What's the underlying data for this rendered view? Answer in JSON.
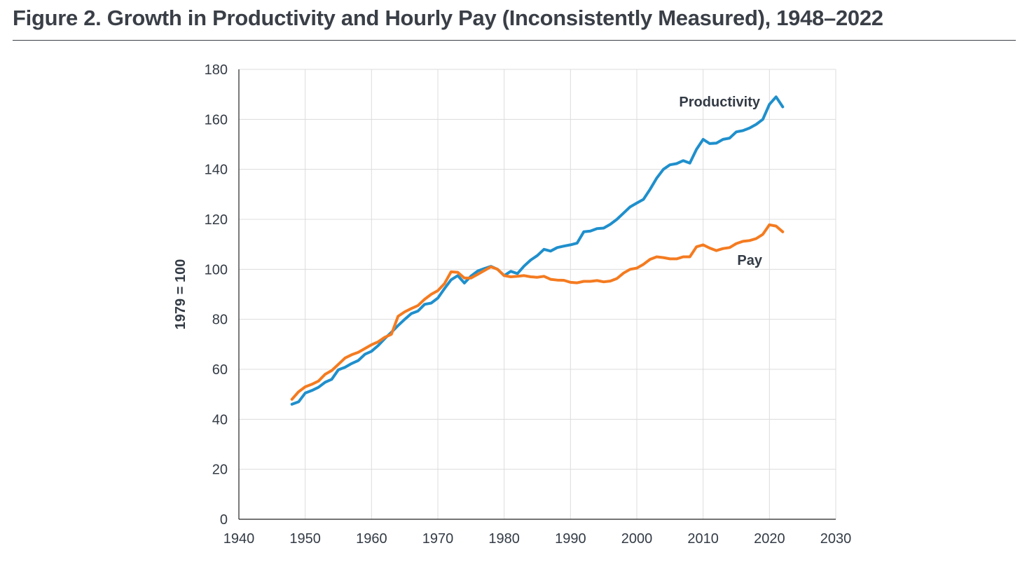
{
  "figure": {
    "title": "Figure 2. Growth in Productivity and Hourly Pay (Inconsistently Measured), 1948–2022"
  },
  "chart_data": {
    "type": "line",
    "title": "Figure 2. Growth in Productivity and Hourly Pay (Inconsistently Measured), 1948–2022",
    "xlabel": "",
    "ylabel": "1979 = 100",
    "xlim": [
      1940,
      2030
    ],
    "ylim": [
      0,
      180
    ],
    "xticks": [
      1940,
      1950,
      1960,
      1970,
      1980,
      1990,
      2000,
      2010,
      2020,
      2030
    ],
    "yticks": [
      0,
      20,
      40,
      60,
      80,
      100,
      120,
      140,
      160,
      180
    ],
    "grid": true,
    "legend": "direct labels on lines",
    "x": [
      1948,
      1949,
      1950,
      1951,
      1952,
      1953,
      1954,
      1955,
      1956,
      1957,
      1958,
      1959,
      1960,
      1961,
      1962,
      1963,
      1964,
      1965,
      1966,
      1967,
      1968,
      1969,
      1970,
      1971,
      1972,
      1973,
      1974,
      1975,
      1976,
      1977,
      1978,
      1979,
      1980,
      1981,
      1982,
      1983,
      1984,
      1985,
      1986,
      1987,
      1988,
      1989,
      1990,
      1991,
      1992,
      1993,
      1994,
      1995,
      1996,
      1997,
      1998,
      1999,
      2000,
      2001,
      2002,
      2003,
      2004,
      2005,
      2006,
      2007,
      2008,
      2009,
      2010,
      2011,
      2012,
      2013,
      2014,
      2015,
      2016,
      2017,
      2018,
      2019,
      2020,
      2021,
      2022
    ],
    "series": [
      {
        "name": "Productivity",
        "color": "#1f8fcc",
        "label_color": "#333b45",
        "values": [
          46.0,
          47.0,
          50.5,
          51.5,
          52.8,
          54.8,
          56.0,
          59.8,
          60.8,
          62.3,
          63.5,
          66.0,
          67.2,
          69.5,
          72.3,
          74.8,
          77.5,
          80.0,
          82.3,
          83.3,
          86.0,
          86.5,
          88.5,
          92.3,
          95.8,
          97.5,
          94.5,
          97.3,
          99.3,
          100.3,
          101.2,
          100.0,
          97.5,
          99.2,
          98.3,
          101.3,
          103.7,
          105.5,
          108.0,
          107.3,
          108.7,
          109.3,
          109.8,
          110.5,
          115.0,
          115.3,
          116.3,
          116.5,
          118.0,
          120.0,
          122.5,
          125.0,
          126.5,
          128.0,
          132.0,
          136.5,
          140.0,
          141.8,
          142.3,
          143.5,
          142.5,
          148.0,
          152.0,
          150.3,
          150.5,
          152.0,
          152.5,
          155.0,
          155.5,
          156.5,
          158.0,
          160.0,
          166.0,
          169.0,
          165.0
        ]
      },
      {
        "name": "Pay",
        "color": "#f47b20",
        "label_color": "#333b45",
        "values": [
          48.0,
          51.0,
          53.0,
          54.0,
          55.3,
          58.0,
          59.5,
          62.0,
          64.5,
          65.8,
          66.8,
          68.3,
          69.8,
          71.0,
          72.8,
          74.0,
          81.2,
          83.0,
          84.3,
          85.5,
          88.0,
          90.0,
          91.5,
          94.3,
          99.0,
          98.8,
          96.5,
          96.5,
          98.0,
          99.5,
          101.0,
          100.0,
          97.5,
          97.0,
          97.2,
          97.5,
          97.0,
          96.8,
          97.2,
          96.0,
          95.7,
          95.6,
          94.8,
          94.6,
          95.2,
          95.2,
          95.5,
          95.0,
          95.3,
          96.3,
          98.5,
          100.0,
          100.5,
          102.0,
          104.0,
          105.0,
          104.7,
          104.2,
          104.2,
          105.0,
          105.0,
          109.0,
          109.8,
          108.5,
          107.5,
          108.3,
          108.7,
          110.3,
          111.2,
          111.5,
          112.3,
          114.0,
          117.8,
          117.3,
          115.0
        ]
      }
    ]
  }
}
